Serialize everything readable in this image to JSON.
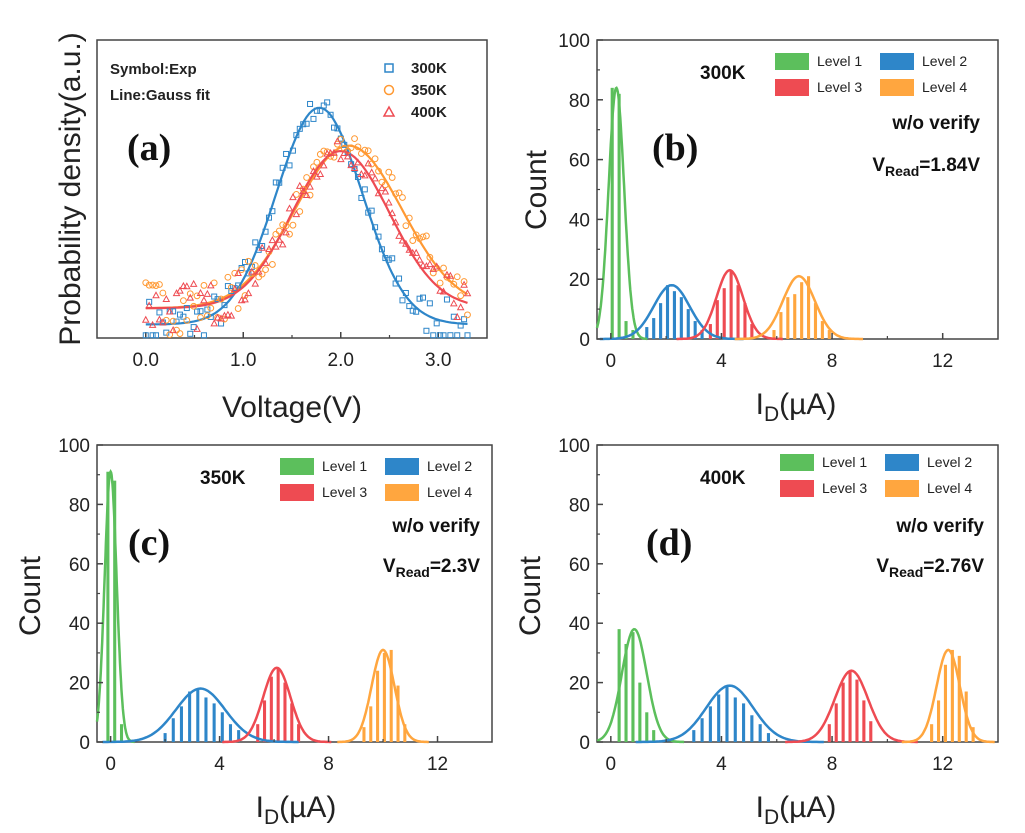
{
  "palette": {
    "level1": "#5cbf5c",
    "level2": "#2e86c9",
    "level3": "#ee4b52",
    "level4": "#ffa63f",
    "k300": "#2e86c9",
    "k350": "#ff9933",
    "k400": "#ee4b52"
  },
  "chart_data": [
    {
      "id": "a",
      "type": "scatter",
      "panel_label": "(a)",
      "xlabel": "Voltage(V)",
      "ylabel": "Probability density(a.u.)",
      "xlim": [
        -0.5,
        3.5
      ],
      "ylim": [
        0,
        1.1
      ],
      "xticks": [
        0.0,
        1.0,
        2.0,
        3.0
      ],
      "xtick_labels": [
        "0.0",
        "1.0",
        "2.0",
        "3.0"
      ],
      "annotations": [
        "Symbol:Exp",
        "Line:Gauss fit"
      ],
      "legend_position": "top-right",
      "series": [
        {
          "name": "300K",
          "marker": "square",
          "color": "#2e86c9",
          "fit": {
            "center": 1.78,
            "sigma": 0.44,
            "amplitude": 0.8,
            "baseline": 0.05
          }
        },
        {
          "name": "350K",
          "marker": "circle",
          "color": "#ff9933",
          "fit": {
            "center": 2.08,
            "sigma": 0.55,
            "amplitude": 0.6,
            "baseline": 0.11
          }
        },
        {
          "name": "400K",
          "marker": "triangle",
          "color": "#ee4b52",
          "fit": {
            "center": 2.0,
            "sigma": 0.5,
            "amplitude": 0.58,
            "baseline": 0.11
          }
        }
      ]
    },
    {
      "id": "b",
      "type": "bar",
      "panel_label": "(b)",
      "temperature_label": "300K",
      "note_line1": "w/o verify",
      "vread_prefix": "V",
      "vread_sub": "Read",
      "vread_value": "=1.84V",
      "xlabel_main": "I",
      "xlabel_sub": "D",
      "xlabel_unit": "(µA)",
      "ylabel": "Count",
      "xlim": [
        -0.5,
        14
      ],
      "ylim": [
        0,
        100
      ],
      "xticks": [
        0,
        4,
        8,
        12
      ],
      "xtick_labels": [
        "0",
        "4",
        "8",
        "12"
      ],
      "yticks": [
        0,
        20,
        40,
        60,
        80,
        100
      ],
      "ytick_labels": [
        "0",
        "20",
        "40",
        "60",
        "80",
        "100"
      ],
      "legend_position": "top-right",
      "series": [
        {
          "name": "Level 1",
          "color": "#5cbf5c",
          "center": 0.2,
          "sigma": 0.28,
          "peak": 84,
          "bars": [
            [
              0.05,
              84
            ],
            [
              0.3,
              82
            ],
            [
              0.55,
              6
            ],
            [
              0.8,
              3
            ]
          ]
        },
        {
          "name": "Level 2",
          "color": "#2e86c9",
          "center": 2.2,
          "sigma": 0.65,
          "peak": 18,
          "bars": [
            [
              1.3,
              4
            ],
            [
              1.55,
              7
            ],
            [
              1.8,
              12
            ],
            [
              2.05,
              18
            ],
            [
              2.3,
              16
            ],
            [
              2.55,
              14
            ],
            [
              2.8,
              10
            ],
            [
              3.05,
              6
            ],
            [
              3.3,
              3
            ]
          ]
        },
        {
          "name": "Level 3",
          "color": "#ee4b52",
          "center": 4.3,
          "sigma": 0.48,
          "peak": 23,
          "bars": [
            [
              3.6,
              5
            ],
            [
              3.85,
              13
            ],
            [
              4.1,
              17
            ],
            [
              4.35,
              23
            ],
            [
              4.6,
              18
            ],
            [
              4.85,
              12
            ],
            [
              5.1,
              5
            ]
          ]
        },
        {
          "name": "Level 4",
          "color": "#ffa63f",
          "center": 6.8,
          "sigma": 0.58,
          "peak": 21,
          "bars": [
            [
              5.9,
              3
            ],
            [
              6.15,
              9
            ],
            [
              6.4,
              14
            ],
            [
              6.65,
              15
            ],
            [
              6.9,
              19
            ],
            [
              7.15,
              21
            ],
            [
              7.4,
              12
            ],
            [
              7.65,
              6
            ],
            [
              7.9,
              3
            ]
          ]
        }
      ]
    },
    {
      "id": "c",
      "type": "bar",
      "panel_label": "(c)",
      "temperature_label": "350K",
      "note_line1": "w/o verify",
      "vread_prefix": "V",
      "vread_sub": "Read",
      "vread_value": "=2.3V",
      "xlabel_main": "I",
      "xlabel_sub": "D",
      "xlabel_unit": "(µA)",
      "ylabel": "Count",
      "xlim": [
        -0.5,
        14
      ],
      "ylim": [
        0,
        100
      ],
      "xticks": [
        0,
        4,
        8,
        12
      ],
      "xtick_labels": [
        "0",
        "4",
        "8",
        "12"
      ],
      "yticks": [
        0,
        20,
        40,
        60,
        80,
        100
      ],
      "ytick_labels": [
        "0",
        "20",
        "40",
        "60",
        "80",
        "100"
      ],
      "legend_position": "top-right",
      "series": [
        {
          "name": "Level 1",
          "color": "#5cbf5c",
          "center": 0.0,
          "sigma": 0.22,
          "peak": 91,
          "bars": [
            [
              -0.1,
              91
            ],
            [
              0.15,
              88
            ],
            [
              0.4,
              6
            ]
          ]
        },
        {
          "name": "Level 2",
          "color": "#2e86c9",
          "center": 3.3,
          "sigma": 0.9,
          "peak": 18,
          "bars": [
            [
              2.0,
              3
            ],
            [
              2.3,
              8
            ],
            [
              2.6,
              12
            ],
            [
              2.9,
              17
            ],
            [
              3.2,
              18
            ],
            [
              3.5,
              15
            ],
            [
              3.8,
              13
            ],
            [
              4.1,
              10
            ],
            [
              4.4,
              6
            ],
            [
              4.7,
              4
            ]
          ]
        },
        {
          "name": "Level 3",
          "color": "#ee4b52",
          "center": 6.1,
          "sigma": 0.5,
          "peak": 25,
          "bars": [
            [
              5.4,
              6
            ],
            [
              5.65,
              14
            ],
            [
              5.9,
              22
            ],
            [
              6.15,
              25
            ],
            [
              6.4,
              20
            ],
            [
              6.65,
              13
            ],
            [
              6.9,
              6
            ]
          ]
        },
        {
          "name": "Level 4",
          "color": "#ffa63f",
          "center": 10.0,
          "sigma": 0.42,
          "peak": 31,
          "bars": [
            [
              9.3,
              5
            ],
            [
              9.55,
              12
            ],
            [
              9.8,
              24
            ],
            [
              10.05,
              30
            ],
            [
              10.3,
              31
            ],
            [
              10.55,
              19
            ],
            [
              10.8,
              6
            ]
          ]
        }
      ]
    },
    {
      "id": "d",
      "type": "bar",
      "panel_label": "(d)",
      "temperature_label": "400K",
      "note_line1": "w/o verify",
      "vread_prefix": "V",
      "vread_sub": "Read",
      "vread_value": "=2.76V",
      "xlabel_main": "I",
      "xlabel_sub": "D",
      "xlabel_unit": "(µA)",
      "ylabel": "Count",
      "xlim": [
        -0.5,
        14
      ],
      "ylim": [
        0,
        100
      ],
      "xticks": [
        0,
        4,
        8,
        12
      ],
      "xtick_labels": [
        "0",
        "4",
        "8",
        "12"
      ],
      "yticks": [
        0,
        20,
        40,
        60,
        80,
        100
      ],
      "ytick_labels": [
        "0",
        "20",
        "40",
        "60",
        "80",
        "100"
      ],
      "legend_position": "top-right",
      "series": [
        {
          "name": "Level 1",
          "color": "#5cbf5c",
          "center": 0.85,
          "sigma": 0.45,
          "peak": 38,
          "bars": [
            [
              0.3,
              38
            ],
            [
              0.55,
              33
            ],
            [
              0.8,
              37
            ],
            [
              1.05,
              20
            ],
            [
              1.3,
              10
            ],
            [
              1.55,
              4
            ]
          ]
        },
        {
          "name": "Level 2",
          "color": "#2e86c9",
          "center": 4.3,
          "sigma": 0.85,
          "peak": 19,
          "bars": [
            [
              3.0,
              4
            ],
            [
              3.3,
              8
            ],
            [
              3.6,
              12
            ],
            [
              3.9,
              16
            ],
            [
              4.2,
              19
            ],
            [
              4.5,
              15
            ],
            [
              4.8,
              13
            ],
            [
              5.1,
              9
            ],
            [
              5.4,
              6
            ],
            [
              5.7,
              3
            ]
          ]
        },
        {
          "name": "Level 3",
          "color": "#ee4b52",
          "center": 8.7,
          "sigma": 0.6,
          "peak": 24,
          "bars": [
            [
              7.9,
              6
            ],
            [
              8.15,
              13
            ],
            [
              8.4,
              20
            ],
            [
              8.65,
              24
            ],
            [
              8.9,
              21
            ],
            [
              9.15,
              14
            ],
            [
              9.4,
              7
            ]
          ]
        },
        {
          "name": "Level 4",
          "color": "#ffa63f",
          "center": 12.2,
          "sigma": 0.42,
          "peak": 31,
          "bars": [
            [
              11.6,
              6
            ],
            [
              11.85,
              14
            ],
            [
              12.1,
              26
            ],
            [
              12.35,
              31
            ],
            [
              12.6,
              29
            ],
            [
              12.85,
              17
            ],
            [
              13.1,
              5
            ]
          ]
        }
      ]
    }
  ]
}
